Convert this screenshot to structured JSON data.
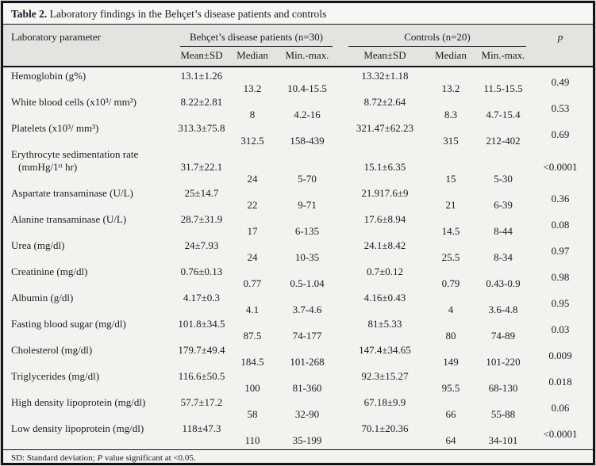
{
  "title": {
    "label": "Table 2.",
    "text": "Laboratory findings in the Behçet’s disease patients and controls"
  },
  "header": {
    "parameter": "Laboratory parameter",
    "group1": "Behçet’s disease patients (n=30)",
    "group2": "Controls (n=20)",
    "p": "p",
    "sub": {
      "mean": "Mean±SD",
      "median": "Median",
      "minmax": "Min.-max."
    }
  },
  "rows": [
    {
      "param": "Hemoglobin (g%)",
      "param2": "",
      "b_mean": "13.1±1.26",
      "b_median": "13.2",
      "b_minmax": "10.4-15.5",
      "c_mean": "13.32±1.18",
      "c_median": "13.2",
      "c_minmax": "11.5-15.5",
      "p": "0.49"
    },
    {
      "param": "White blood cells (x10³/ mm³)",
      "param2": "",
      "b_mean": "8.22±2.81",
      "b_median": "8",
      "b_minmax": "4.2-16",
      "c_mean": "8.72±2.64",
      "c_median": "8.3",
      "c_minmax": "4.7-15.4",
      "p": "0.53"
    },
    {
      "param": "Platelets (x10³/ mm³)",
      "param2": "",
      "b_mean": "313.3±75.8",
      "b_median": "312.5",
      "b_minmax": "158-439",
      "c_mean": "321.47±62.23",
      "c_median": "315",
      "c_minmax": "212-402",
      "p": "0.69"
    },
    {
      "param": "Erythrocyte sedimentation rate",
      "param2": "(mmHg/1ˢᵗ hr)",
      "b_mean": "31.7±22.1",
      "b_median": "24",
      "b_minmax": "5-70",
      "c_mean": "15.1±6.35",
      "c_median": "15",
      "c_minmax": "5-30",
      "p": "<0.0001"
    },
    {
      "param": "Aspartate transaminase (U/L)",
      "param2": "",
      "b_mean": "25±14.7",
      "b_median": "22",
      "b_minmax": "9-71",
      "c_mean": "21.917.6±9",
      "c_median": "21",
      "c_minmax": "6-39",
      "p": "0.36"
    },
    {
      "param": "Alanine transaminase (U/L)",
      "param2": "",
      "b_mean": "28.7±31.9",
      "b_median": "17",
      "b_minmax": "6-135",
      "c_mean": "17.6±8.94",
      "c_median": "14.5",
      "c_minmax": "8-44",
      "p": "0.08"
    },
    {
      "param": "Urea (mg/dl)",
      "param2": "",
      "b_mean": "24±7.93",
      "b_median": "24",
      "b_minmax": "10-35",
      "c_mean": "24.1±8.42",
      "c_median": "25.5",
      "c_minmax": "8-34",
      "p": "0.97"
    },
    {
      "param": "Creatinine (mg/dl)",
      "param2": "",
      "b_mean": "0.76±0.13",
      "b_median": "0.77",
      "b_minmax": "0.5-1.04",
      "c_mean": "0.7±0.12",
      "c_median": "0.79",
      "c_minmax": "0.43-0.9",
      "p": "0.98"
    },
    {
      "param": "Albumin (g/dl)",
      "param2": "",
      "b_mean": "4.17±0.3",
      "b_median": "4.1",
      "b_minmax": "3.7-4.6",
      "c_mean": "4.16±0.43",
      "c_median": "4",
      "c_minmax": "3.6-4.8",
      "p": "0.95"
    },
    {
      "param": "Fasting blood sugar (mg/dl)",
      "param2": "",
      "b_mean": "101.8±34.5",
      "b_median": "87.5",
      "b_minmax": "74-177",
      "c_mean": "81±5.33",
      "c_median": "80",
      "c_minmax": "74-89",
      "p": "0.03"
    },
    {
      "param": "Cholesterol (mg/dl)",
      "param2": "",
      "b_mean": "179.7±49.4",
      "b_median": "184.5",
      "b_minmax": "101-268",
      "c_mean": "147.4±34.65",
      "c_median": "149",
      "c_minmax": "101-220",
      "p": "0.009"
    },
    {
      "param": "Triglycerides (mg/dl)",
      "param2": "",
      "b_mean": "116.6±50.5",
      "b_median": "100",
      "b_minmax": "81-360",
      "c_mean": "92.3±15.27",
      "c_median": "95.5",
      "c_minmax": "68-130",
      "p": "0.018"
    },
    {
      "param": "High density lipoprotein (mg/dl)",
      "param2": "",
      "b_mean": "57.7±17.2",
      "b_median": "58",
      "b_minmax": "32-90",
      "c_mean": "67.18±9.9",
      "c_median": "66",
      "c_minmax": "55-88",
      "p": "0.06"
    },
    {
      "param": "Low density lipoprotein (mg/dl)",
      "param2": "",
      "b_mean": "118±47.3",
      "b_median": "110",
      "b_minmax": "35-199",
      "c_mean": "70.1±20.36",
      "c_median": "64",
      "c_minmax": "34-101",
      "p": "<0.0001"
    }
  ],
  "footnote": {
    "part1": "SD: Standard deviation; ",
    "italic": "P",
    "part2": " value significant at <0.05."
  },
  "colors": {
    "frame_border": "#141418",
    "header_bg": "#e3e3df",
    "body_bg": "#f2f2ee",
    "text": "#1c1c26"
  }
}
